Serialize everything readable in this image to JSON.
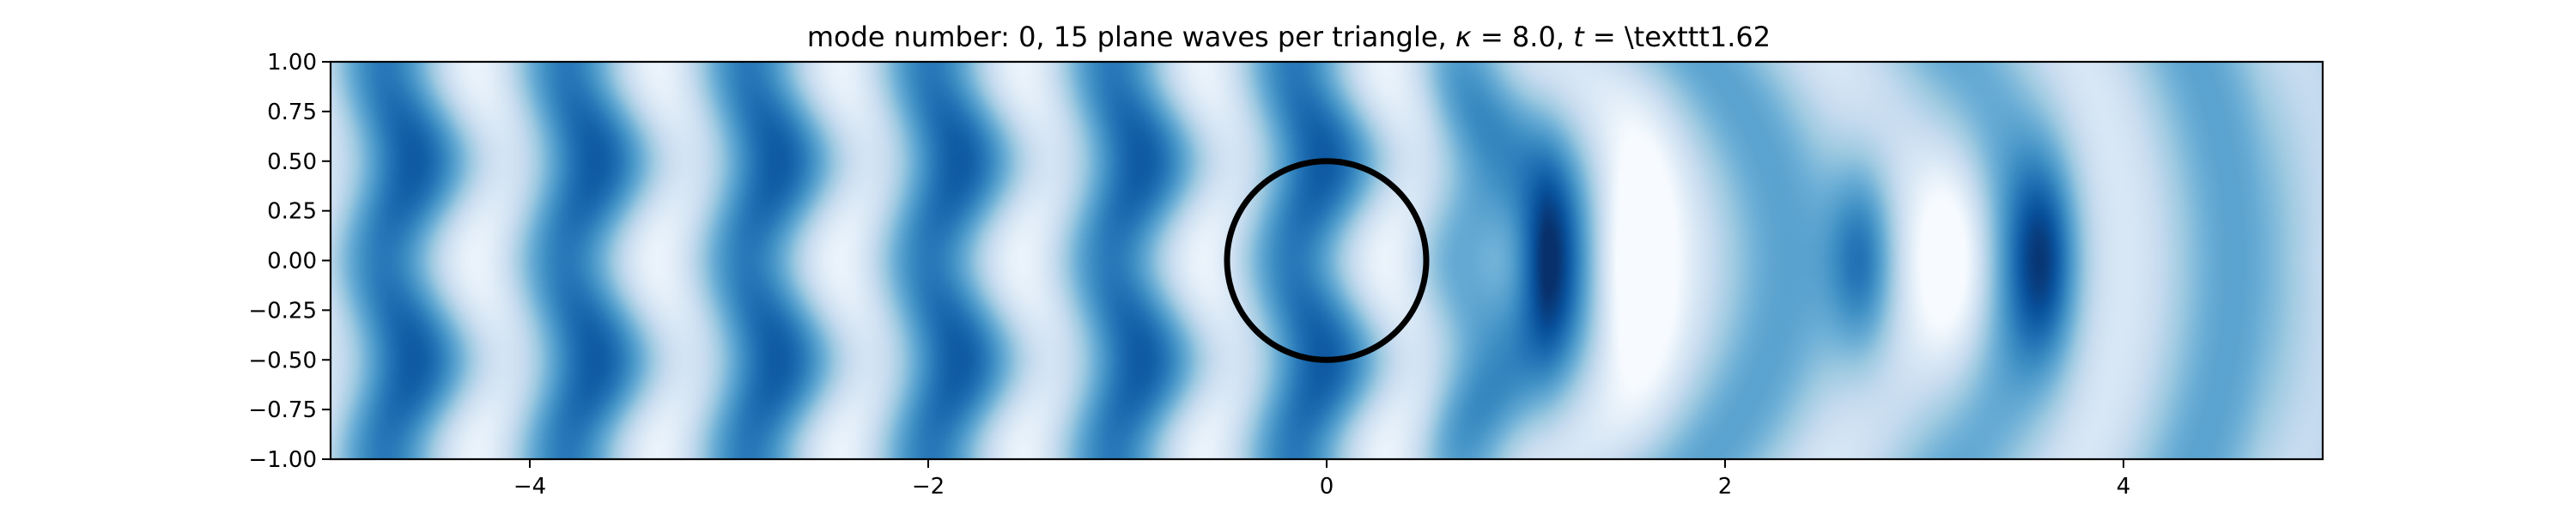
{
  "chart_data": {
    "type": "heatmap",
    "title": "mode number: 0, 15 plane waves per triangle, κ = 8.0, t =  \\texttt1.62",
    "title_parts": {
      "prefix": "mode number: 0, 15 plane waves per triangle, ",
      "kappa_symbol": "κ",
      "kappa_value": " = 8.0, ",
      "t_symbol": "t",
      "t_value": " =  \\texttt1.62"
    },
    "xlabel": "",
    "ylabel": "",
    "xlim": [
      -5,
      5
    ],
    "ylim": [
      -1,
      1
    ],
    "xticks": [
      {
        "value": -4,
        "label": "−4"
      },
      {
        "value": -2,
        "label": "−2"
      },
      {
        "value": 0,
        "label": "0"
      },
      {
        "value": 2,
        "label": "2"
      },
      {
        "value": 4,
        "label": "4"
      }
    ],
    "yticks": [
      {
        "value": 1.0,
        "label": "1.00"
      },
      {
        "value": 0.75,
        "label": "0.75"
      },
      {
        "value": 0.5,
        "label": "0.50"
      },
      {
        "value": 0.25,
        "label": "0.25"
      },
      {
        "value": 0.0,
        "label": "0.00"
      },
      {
        "value": -0.25,
        "label": "−0.25"
      },
      {
        "value": -0.5,
        "label": "−0.50"
      },
      {
        "value": -0.75,
        "label": "−0.75"
      },
      {
        "value": -1.0,
        "label": "−1.00"
      }
    ],
    "colormap": "Blues",
    "colormap_stops": [
      "#f7fbff",
      "#deebf7",
      "#c6dbef",
      "#9ecae1",
      "#6baed6",
      "#4292c6",
      "#2171b5",
      "#08519c",
      "#08306b"
    ],
    "grid": false,
    "field": {
      "description_of_pattern": "incident plane wave traveling in x scattered by a circular obstacle",
      "wavenumber": 8.0,
      "left_band_dark_centers_x": [
        -4.4,
        -3.5,
        -2.7,
        -1.8,
        -0.8
      ],
      "right_focus_dark_centers_x": [
        1.1,
        2.7,
        3.6
      ],
      "right_focus_bright_centers_x": [
        1.55,
        3.15
      ]
    },
    "obstacle": {
      "shape": "circle",
      "center": [
        0,
        0
      ],
      "radius": 0.5,
      "color": "#000000"
    }
  }
}
